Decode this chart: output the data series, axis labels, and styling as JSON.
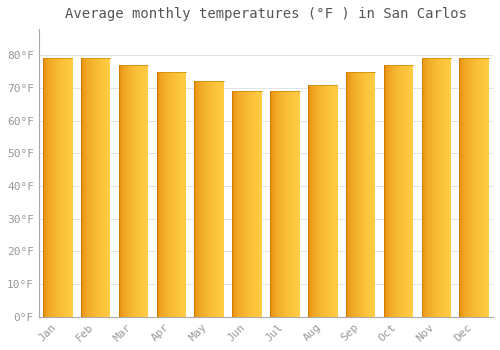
{
  "title": "Average monthly temperatures (°F ) in San Carlos",
  "months": [
    "Jan",
    "Feb",
    "Mar",
    "Apr",
    "May",
    "Jun",
    "Jul",
    "Aug",
    "Sep",
    "Oct",
    "Nov",
    "Dec"
  ],
  "values": [
    79,
    79,
    77,
    75,
    72,
    69,
    69,
    71,
    75,
    77,
    79,
    79
  ],
  "bar_color_main": "#FFA500",
  "bar_color_light": "#FFD060",
  "bar_edge_dark": "#E07000",
  "ylim": [
    0,
    88
  ],
  "yticks": [
    0,
    10,
    20,
    30,
    40,
    50,
    60,
    70,
    80
  ],
  "ytick_labels": [
    "0°F",
    "10°F",
    "20°F",
    "30°F",
    "40°F",
    "50°F",
    "60°F",
    "70°F",
    "80°F"
  ],
  "background_color": "#FFFFFF",
  "grid_color": "#DDDDDD",
  "title_fontsize": 10,
  "tick_fontsize": 8,
  "tick_color": "#999999",
  "bar_width": 0.78
}
